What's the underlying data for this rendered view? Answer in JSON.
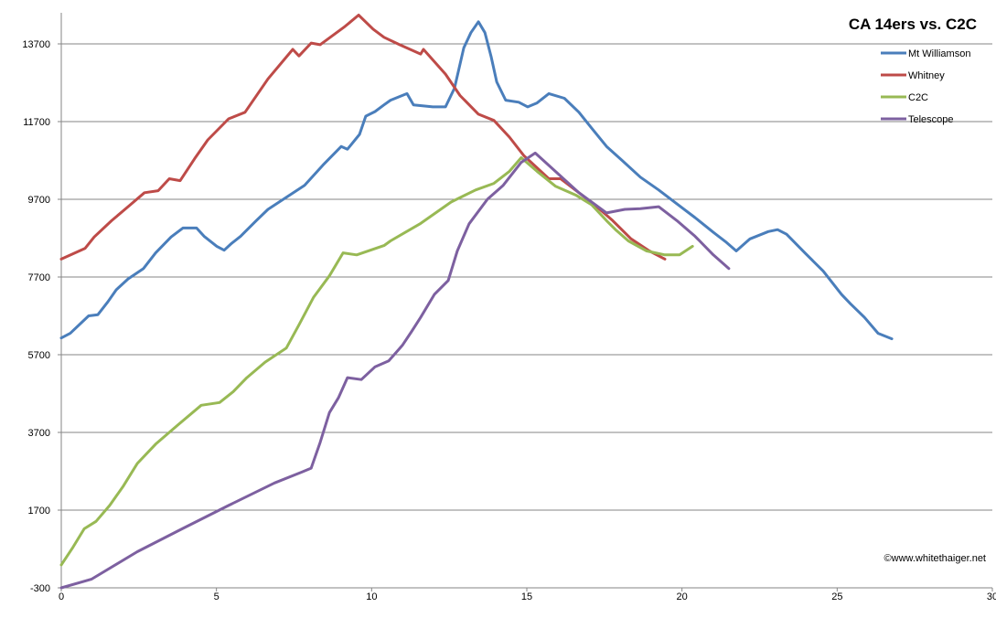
{
  "chart_data": {
    "type": "line",
    "title": "CA 14ers vs. C2C",
    "xlabel": "",
    "ylabel": "",
    "xlim": [
      0,
      30
    ],
    "ylim": [
      -300,
      14500
    ],
    "xticks": [
      0,
      5,
      10,
      15,
      20,
      25,
      30
    ],
    "yticks": [
      -300,
      1700,
      3700,
      5700,
      7700,
      9700,
      11700,
      13700
    ],
    "grid": "horizontal",
    "legend_position": "top-right",
    "watermark": "©www.whitethaiger.net",
    "series": [
      {
        "name": "Mt Williamson",
        "color": "#4a7ebb",
        "x": [
          0,
          0.29,
          0.88,
          1.18,
          1.5,
          1.77,
          2.15,
          2.65,
          3.04,
          3.54,
          3.92,
          4.36,
          4.6,
          5.01,
          5.25,
          5.48,
          5.78,
          6.28,
          6.66,
          7.25,
          7.84,
          8.43,
          9.02,
          9.22,
          9.61,
          9.81,
          10.11,
          10.4,
          10.61,
          11.14,
          11.35,
          11.97,
          12.38,
          12.67,
          12.97,
          13.2,
          13.44,
          13.65,
          13.85,
          14.03,
          14.32,
          14.74,
          15.03,
          15.33,
          15.71,
          16.21,
          16.68,
          17.09,
          17.57,
          18.07,
          18.66,
          19.25,
          19.84,
          20.42,
          21.01,
          21.4,
          21.75,
          22.19,
          22.78,
          23.08,
          23.37,
          23.96,
          24.55,
          25.14,
          25.43,
          25.88,
          26.32,
          26.76
        ],
        "y": [
          6130,
          6250,
          6700,
          6730,
          7060,
          7370,
          7650,
          7920,
          8320,
          8730,
          8960,
          8960,
          8750,
          8490,
          8390,
          8560,
          8750,
          9150,
          9440,
          9750,
          10060,
          10580,
          11060,
          10990,
          11370,
          11840,
          11960,
          12130,
          12250,
          12420,
          12130,
          12080,
          12080,
          12560,
          13600,
          13990,
          14270,
          13990,
          13370,
          12720,
          12250,
          12200,
          12080,
          12180,
          12420,
          12300,
          11940,
          11530,
          11060,
          10700,
          10270,
          9940,
          9580,
          9230,
          8850,
          8610,
          8370,
          8680,
          8870,
          8920,
          8800,
          8320,
          7850,
          7250,
          7010,
          6660,
          6250,
          6110
        ]
      },
      {
        "name": "Whitney",
        "color": "#be4b48",
        "x": [
          0,
          0.77,
          1.06,
          1.62,
          2.15,
          2.68,
          3.12,
          3.48,
          3.83,
          4.3,
          4.72,
          5.39,
          5.92,
          6.66,
          7.46,
          7.66,
          8.05,
          8.34,
          9.14,
          9.58,
          10.05,
          10.4,
          10.9,
          11.58,
          11.67,
          12.38,
          12.85,
          13.44,
          13.94,
          14.44,
          14.91,
          15.71,
          16.09,
          16.68,
          17.18,
          17.77,
          18.36,
          18.95,
          19.45
        ],
        "y": [
          8160,
          8440,
          8730,
          9150,
          9510,
          9870,
          9920,
          10230,
          10180,
          10750,
          11230,
          11770,
          11940,
          12800,
          13560,
          13390,
          13720,
          13680,
          14150,
          14440,
          14080,
          13870,
          13680,
          13440,
          13560,
          12920,
          12370,
          11890,
          11730,
          11300,
          10820,
          10230,
          10230,
          9870,
          9560,
          9150,
          8680,
          8370,
          8160
        ]
      },
      {
        "name": "C2C",
        "color": "#98b954",
        "x": [
          0,
          0.38,
          0.74,
          1.12,
          1.56,
          2.0,
          2.45,
          3.04,
          3.77,
          4.51,
          5.1,
          5.54,
          5.98,
          6.57,
          7.25,
          7.66,
          8.13,
          8.64,
          9.08,
          9.52,
          10.4,
          10.61,
          11.58,
          12.56,
          13.35,
          13.94,
          14.44,
          14.82,
          15.33,
          15.92,
          16.6,
          17.09,
          17.57,
          17.86,
          18.27,
          18.86,
          19.45,
          19.92,
          20.34
        ],
        "y": [
          290,
          750,
          1220,
          1410,
          1820,
          2320,
          2900,
          3400,
          3900,
          4400,
          4470,
          4750,
          5110,
          5510,
          5870,
          6470,
          7180,
          7730,
          8320,
          8270,
          8510,
          8630,
          9080,
          9630,
          9940,
          10110,
          10420,
          10770,
          10420,
          10040,
          9800,
          9560,
          9150,
          8920,
          8630,
          8370,
          8270,
          8270,
          8490
        ]
      },
      {
        "name": "Telescope",
        "color": "#7d60a0",
        "x": [
          0,
          0.97,
          2.45,
          3.92,
          5.39,
          6.87,
          7.75,
          8.05,
          8.34,
          8.64,
          8.93,
          9.22,
          9.67,
          10.11,
          10.55,
          10.99,
          11.29,
          11.58,
          12.02,
          12.47,
          12.76,
          13.14,
          13.73,
          14.24,
          14.82,
          15.27,
          15.92,
          16.68,
          17.57,
          18.16,
          18.66,
          19.25,
          19.84,
          20.42,
          21.01,
          21.51
        ],
        "y": [
          -300,
          -80,
          630,
          1230,
          1820,
          2400,
          2680,
          2780,
          3440,
          4210,
          4590,
          5110,
          5060,
          5390,
          5540,
          5940,
          6300,
          6660,
          7250,
          7610,
          8370,
          9070,
          9700,
          10060,
          10650,
          10890,
          10420,
          9870,
          9350,
          9440,
          9460,
          9510,
          9150,
          8750,
          8270,
          7920
        ]
      }
    ]
  }
}
